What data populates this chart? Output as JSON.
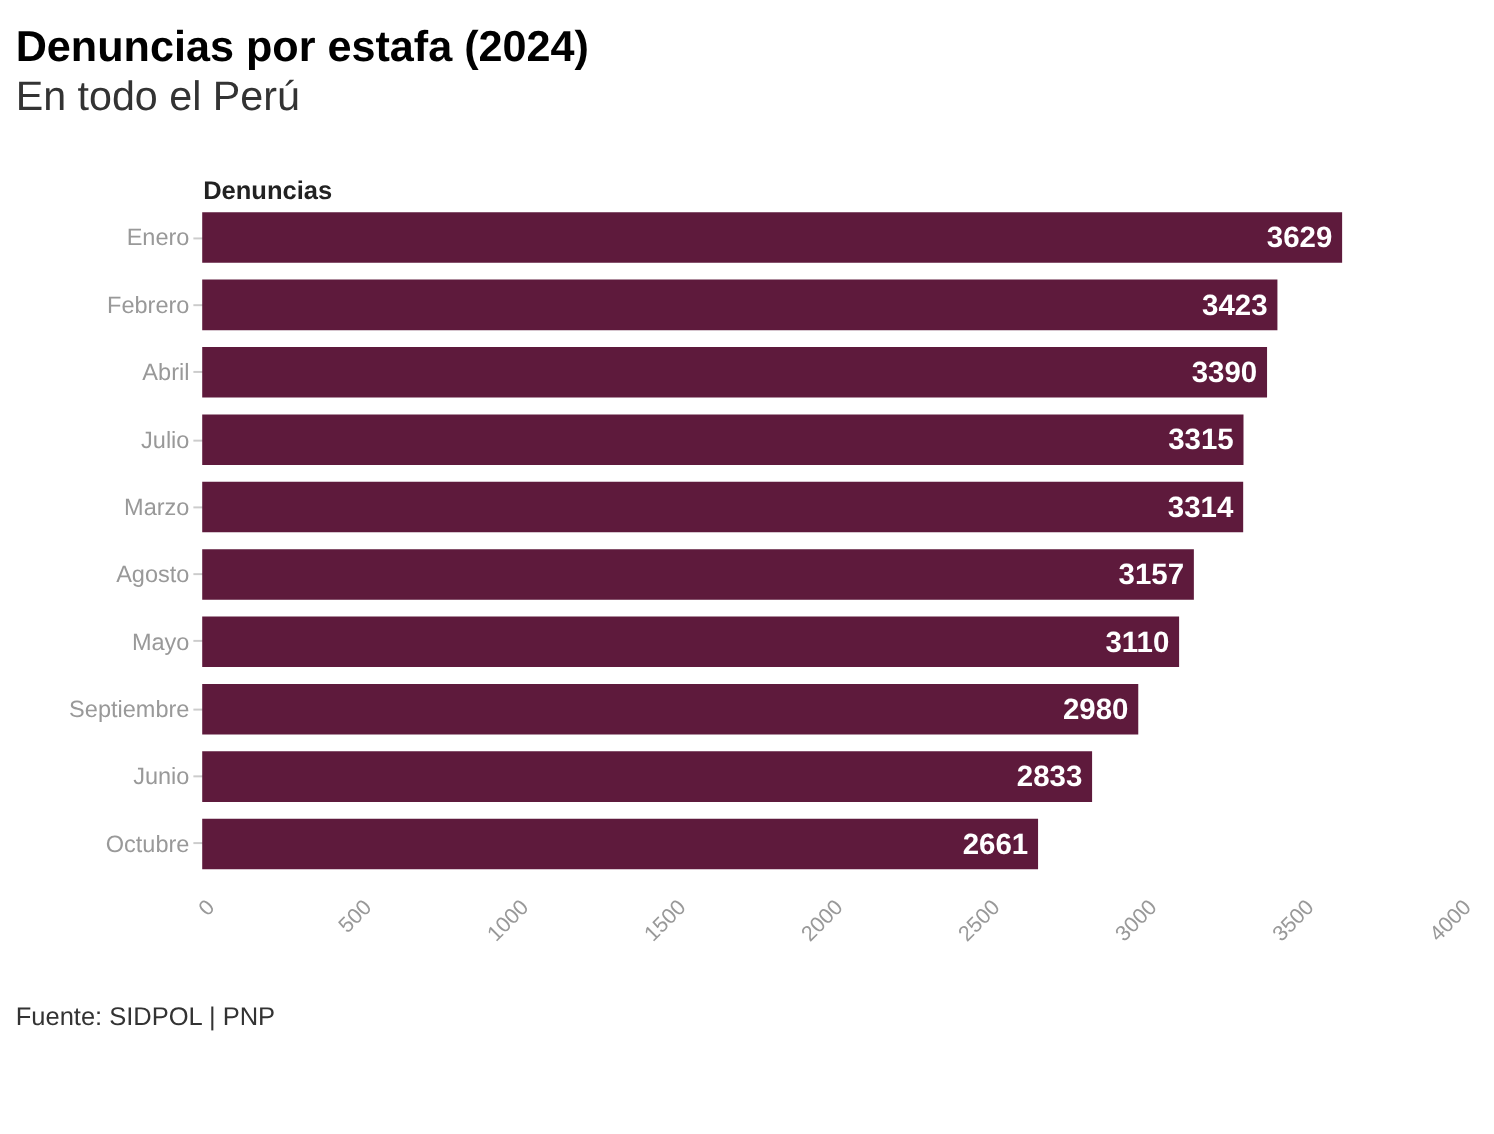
{
  "chart_data": {
    "type": "bar",
    "orientation": "horizontal",
    "title": "Denuncias por estafa (2024)",
    "subtitle": "En todo el Perú",
    "xlabel": "Denuncias",
    "categories": [
      "Enero",
      "Febrero",
      "Abril",
      "Julio",
      "Marzo",
      "Agosto",
      "Mayo",
      "Septiembre",
      "Junio",
      "Octubre"
    ],
    "values": [
      3629,
      3423,
      3390,
      3315,
      3314,
      3157,
      3110,
      2980,
      2833,
      2661
    ],
    "color": "#5e1a3c",
    "data_labels": true,
    "xlim": [
      0,
      4000
    ],
    "xticks": [
      0,
      500,
      1000,
      1500,
      2000,
      2500,
      3000,
      3500,
      4000
    ],
    "grid": false,
    "annotations": [
      "Fuente: SIDPOL | PNP"
    ]
  }
}
